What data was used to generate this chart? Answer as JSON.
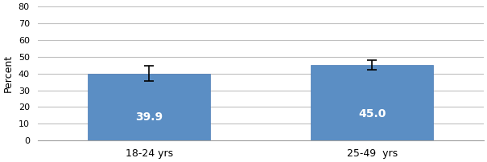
{
  "categories": [
    "18-24 yrs",
    "25-49  yrs"
  ],
  "values": [
    39.9,
    45.0
  ],
  "errors_upper": [
    4.5,
    3.0
  ],
  "errors_lower": [
    4.5,
    3.0
  ],
  "bar_color": "#5b8ec4",
  "bar_edgecolor": "#4a7ab5",
  "text_color": "white",
  "text_fontsize": 10,
  "ylabel": "Percent",
  "ylim": [
    0,
    80
  ],
  "yticks": [
    0,
    10,
    20,
    30,
    40,
    50,
    60,
    70,
    80
  ],
  "background_color": "#ffffff",
  "plot_bg_color": "#ffffff",
  "grid_color": "#c0c0c0",
  "error_color": "black",
  "bar_width": 0.55,
  "x_positions": [
    0.5,
    1.5
  ],
  "xlim": [
    0.0,
    2.0
  ],
  "x_tick_positions": [
    0.5,
    1.5
  ]
}
